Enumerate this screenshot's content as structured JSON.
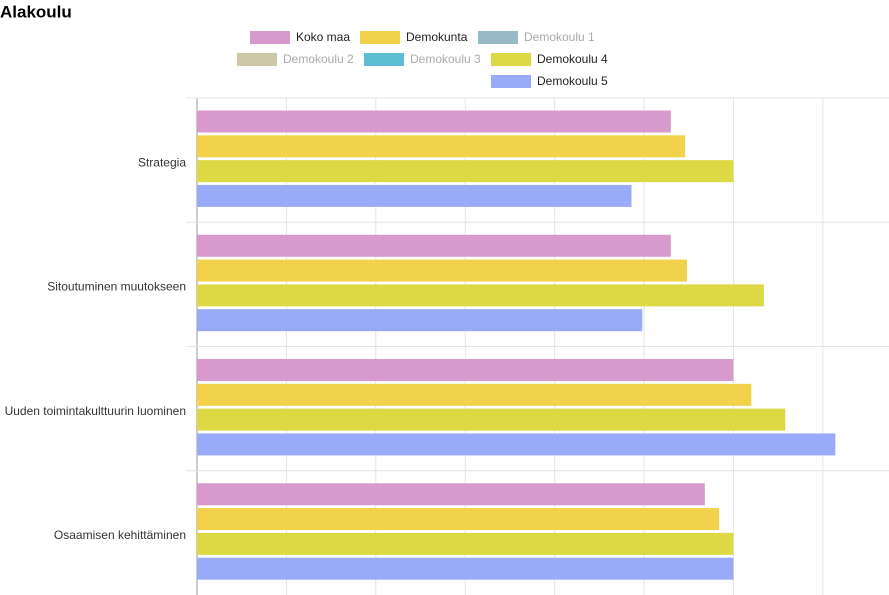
{
  "chart_data": {
    "type": "hbar",
    "title": "Alakoulu",
    "categories": [
      "Strategia",
      "Sitoutuminen muutokseen",
      "Uuden toimintakulttuurin luominen",
      "Osaamisen kehittäminen"
    ],
    "series": [
      {
        "name": "Koko maa",
        "color": "#d899cc",
        "values": [
          2.65,
          2.65,
          3.0,
          2.84
        ]
      },
      {
        "name": "Demokunta",
        "color": "#f2d24b",
        "values": [
          2.73,
          2.74,
          3.1,
          2.92
        ]
      },
      {
        "name": "Demokoulu 1",
        "color": "#97b9c6",
        "hidden": true,
        "values": [
          null,
          null,
          null,
          null
        ]
      },
      {
        "name": "Demokoulu 2",
        "color": "#cfc8a8",
        "hidden": true,
        "values": [
          null,
          null,
          null,
          null
        ]
      },
      {
        "name": "Demokoulu 3",
        "color": "#5bbfd1",
        "hidden": true,
        "values": [
          null,
          null,
          null,
          null
        ]
      },
      {
        "name": "Demokoulu 4",
        "color": "#dcd944",
        "values": [
          3.0,
          3.17,
          3.29,
          3.0
        ]
      },
      {
        "name": "Demokoulu 5",
        "color": "#98aaf8",
        "values": [
          2.43,
          2.49,
          3.57,
          3.0
        ]
      }
    ],
    "xlim": [
      0,
      3.87
    ],
    "xticks": [
      0,
      0.5,
      1,
      1.5,
      2,
      2.5,
      3,
      3.5
    ],
    "grid": true
  }
}
